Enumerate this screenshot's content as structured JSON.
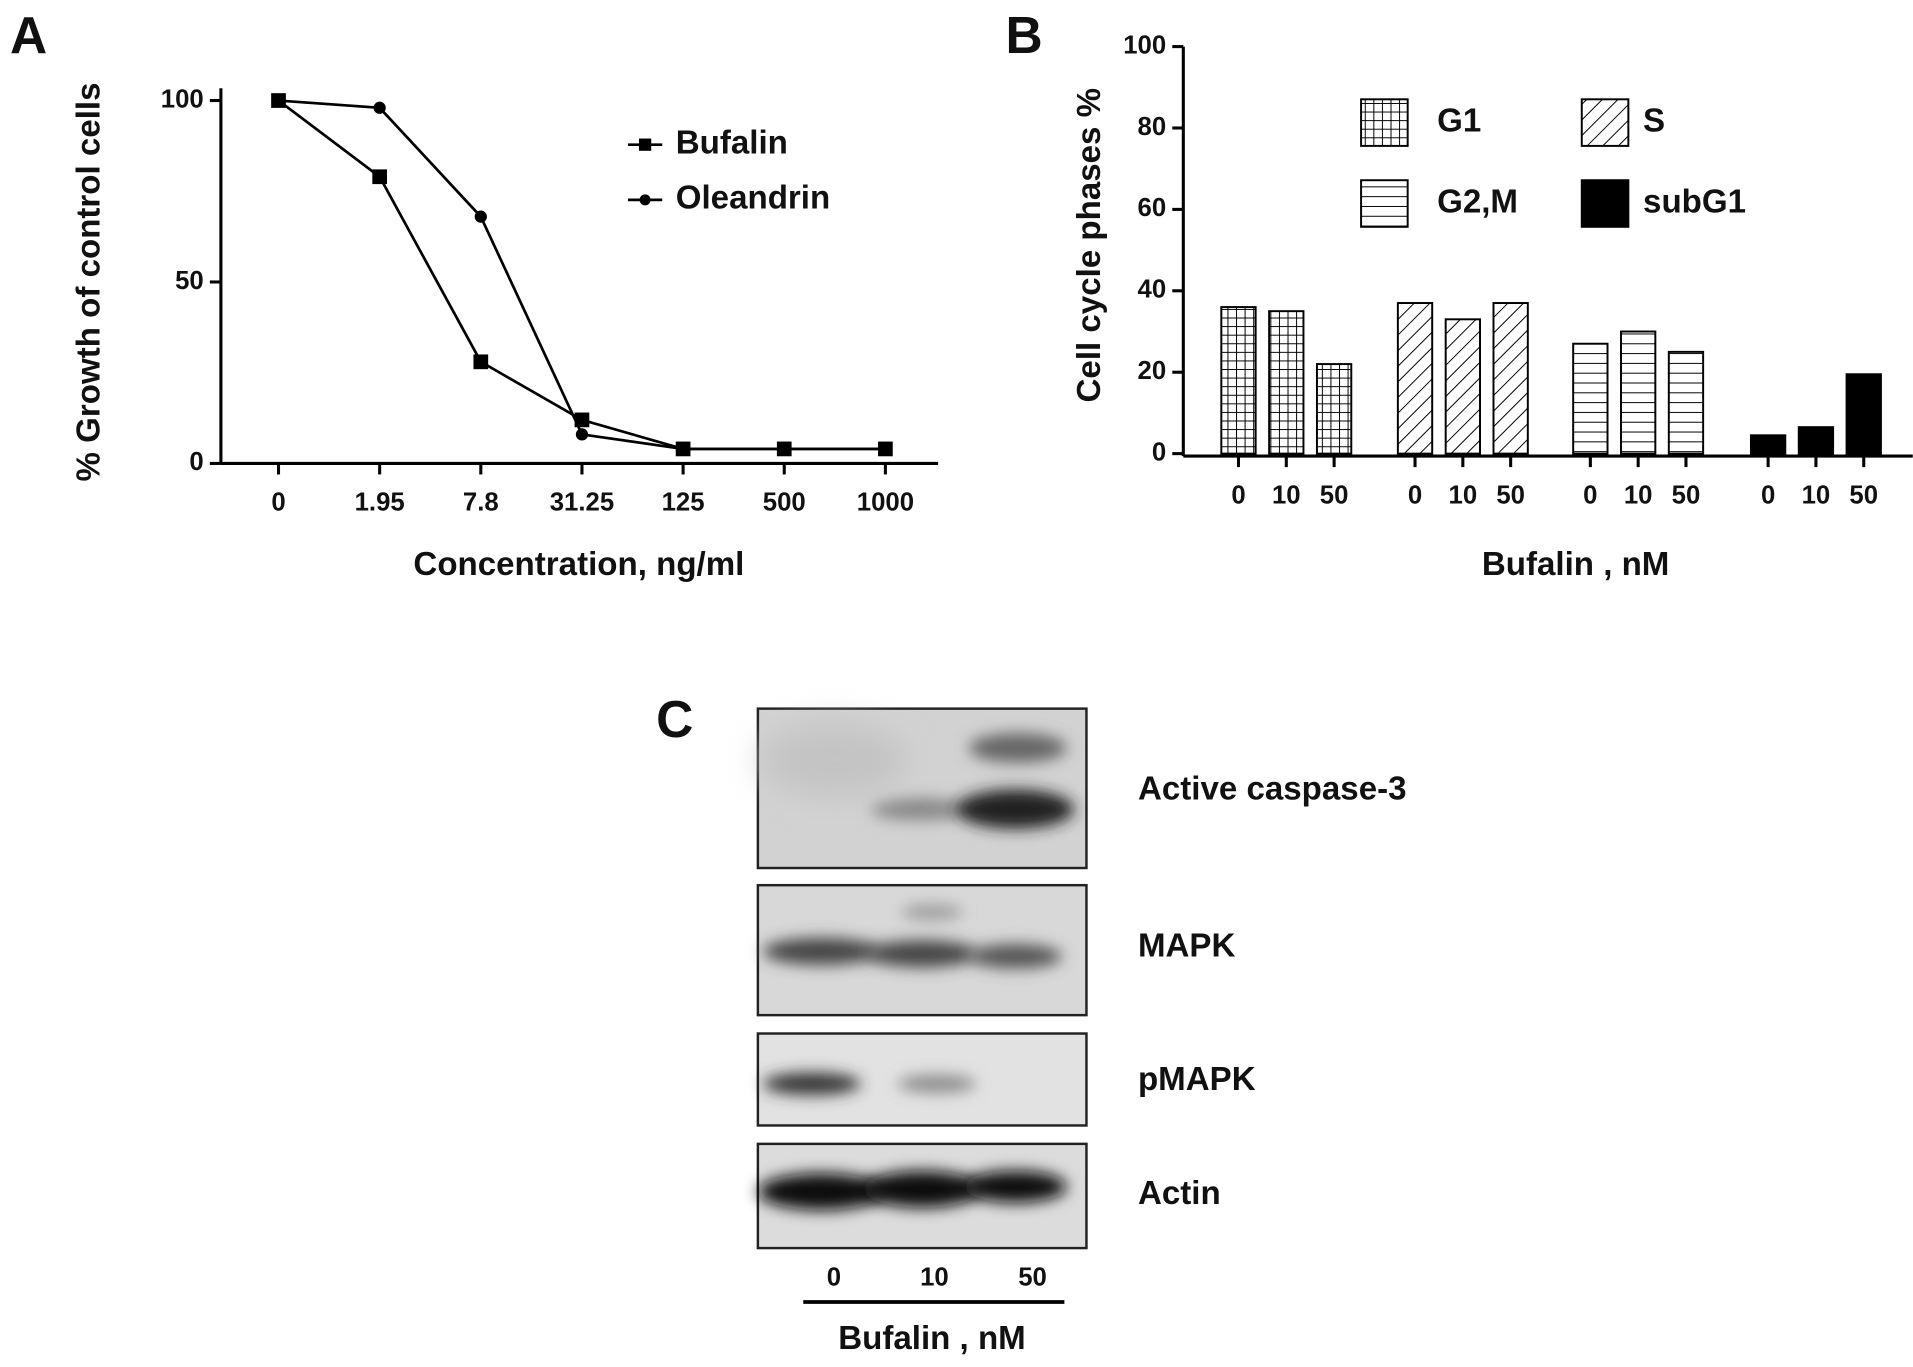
{
  "panels": [
    "A",
    "B",
    "C"
  ],
  "chart_data": [
    {
      "type": "line",
      "ylabel": "% Growth of control cells",
      "xlabel": "Concentration, ng/ml",
      "categories": [
        "0",
        "1.95",
        "7.8",
        "31.25",
        "125",
        "500",
        "1000"
      ],
      "ylim": [
        0,
        100
      ],
      "yticks": [
        0,
        50,
        100
      ],
      "series": [
        {
          "name": "Bufalin",
          "marker": "square",
          "color": "#000000",
          "values": [
            100,
            79,
            28,
            12,
            4,
            4,
            4
          ]
        },
        {
          "name": "Oleandrin",
          "marker": "circle",
          "color": "#000000",
          "values": [
            100,
            98,
            68,
            8,
            4,
            4,
            4
          ]
        }
      ]
    },
    {
      "type": "bar",
      "ylabel": "Cell cycle phases %",
      "xlabel": "Bufalin , nM",
      "categories": [
        "0",
        "10",
        "50"
      ],
      "ylim": [
        0,
        100
      ],
      "yticks": [
        0,
        20,
        40,
        60,
        80,
        100
      ],
      "series": [
        {
          "name": "G1",
          "pattern": "grid",
          "color": "#000000",
          "values": [
            36,
            35,
            22
          ]
        },
        {
          "name": "S",
          "pattern": "diagonal",
          "color": "#000000",
          "values": [
            37,
            33,
            37
          ]
        },
        {
          "name": "G2,M",
          "pattern": "horizontal",
          "color": "#000000",
          "values": [
            27,
            30,
            25
          ]
        },
        {
          "name": "subG1",
          "pattern": "solid",
          "color": "#000000",
          "values": [
            4.5,
            6.5,
            19.5
          ]
        }
      ]
    }
  ],
  "blot": {
    "bands": [
      "Active caspase-3",
      "MAPK",
      "pMAPK",
      "Actin"
    ],
    "lanes": [
      "0",
      "10",
      "50"
    ],
    "xlabel": "Bufalin , nM"
  }
}
